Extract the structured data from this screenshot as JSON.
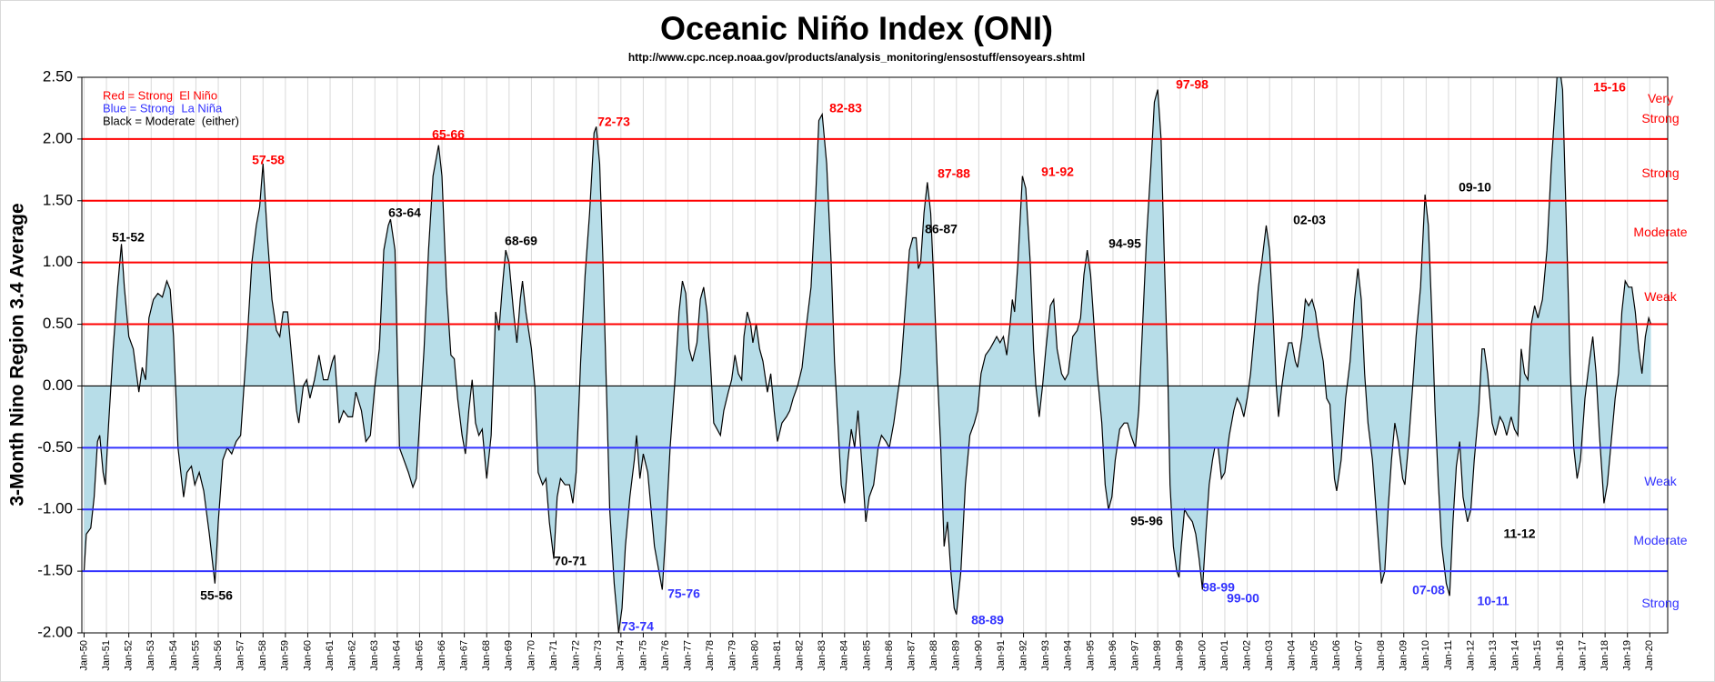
{
  "chart_data": {
    "type": "area",
    "title": "Oceanic Niño Index (ONI)",
    "subtitle": "http://www.cpc.ncep.noaa.gov/products/analysis_monitoring/ensostuff/ensoyears.shtml",
    "y_label": "3-Month Nino Region 3.4 Average",
    "legend_notes": [
      {
        "text": "Red = Strong  El Niño",
        "color": "#ff0000"
      },
      {
        "text": "Blue = Strong  La Niña",
        "color": "#3333ff"
      },
      {
        "text": "Black = Moderate  (either)",
        "color": "#000000"
      }
    ],
    "ylim": [
      -2,
      2.5
    ],
    "yticks": [
      {
        "value": -2,
        "label": "-2.00"
      },
      {
        "value": -1.5,
        "label": "-1.50"
      },
      {
        "value": -1,
        "label": "-1.00"
      },
      {
        "value": -0.5,
        "label": "-0.50"
      },
      {
        "value": 0,
        "label": "0.00"
      },
      {
        "value": 0.5,
        "label": "0.50"
      },
      {
        "value": 1,
        "label": "1.00"
      },
      {
        "value": 1.5,
        "label": "1.50"
      },
      {
        "value": 2,
        "label": "2.00"
      },
      {
        "value": 2.5,
        "label": "2.50"
      }
    ],
    "xlim": [
      1949.9,
      2020.8
    ],
    "xticks": [
      {
        "value": 1950,
        "label": "Jan-50"
      },
      {
        "value": 1951,
        "label": "Jan-51"
      },
      {
        "value": 1952,
        "label": "Jan-52"
      },
      {
        "value": 1953,
        "label": "Jan-53"
      },
      {
        "value": 1954,
        "label": "Jan-54"
      },
      {
        "value": 1955,
        "label": "Jan-55"
      },
      {
        "value": 1956,
        "label": "Jan-56"
      },
      {
        "value": 1957,
        "label": "Jan-57"
      },
      {
        "value": 1958,
        "label": "Jan-58"
      },
      {
        "value": 1959,
        "label": "Jan-59"
      },
      {
        "value": 1960,
        "label": "Jan-60"
      },
      {
        "value": 1961,
        "label": "Jan-61"
      },
      {
        "value": 1962,
        "label": "Jan-62"
      },
      {
        "value": 1963,
        "label": "Jan-63"
      },
      {
        "value": 1964,
        "label": "Jan-64"
      },
      {
        "value": 1965,
        "label": "Jan-65"
      },
      {
        "value": 1966,
        "label": "Jan-66"
      },
      {
        "value": 1967,
        "label": "Jan-67"
      },
      {
        "value": 1968,
        "label": "Jan-68"
      },
      {
        "value": 1969,
        "label": "Jan-69"
      },
      {
        "value": 1970,
        "label": "Jan-70"
      },
      {
        "value": 1971,
        "label": "Jan-71"
      },
      {
        "value": 1972,
        "label": "Jan-72"
      },
      {
        "value": 1973,
        "label": "Jan-73"
      },
      {
        "value": 1974,
        "label": "Jan-74"
      },
      {
        "value": 1975,
        "label": "Jan-75"
      },
      {
        "value": 1976,
        "label": "Jan-76"
      },
      {
        "value": 1977,
        "label": "Jan-77"
      },
      {
        "value": 1978,
        "label": "Jan-78"
      },
      {
        "value": 1979,
        "label": "Jan-79"
      },
      {
        "value": 1980,
        "label": "Jan-80"
      },
      {
        "value": 1981,
        "label": "Jan-81"
      },
      {
        "value": 1982,
        "label": "Jan-82"
      },
      {
        "value": 1983,
        "label": "Jan-83"
      },
      {
        "value": 1984,
        "label": "Jan-84"
      },
      {
        "value": 1985,
        "label": "Jan-85"
      },
      {
        "value": 1986,
        "label": "Jan-86"
      },
      {
        "value": 1987,
        "label": "Jan-87"
      },
      {
        "value": 1988,
        "label": "Jan-88"
      },
      {
        "value": 1989,
        "label": "Jan-89"
      },
      {
        "value": 1990,
        "label": "Jan-90"
      },
      {
        "value": 1991,
        "label": "Jan-91"
      },
      {
        "value": 1992,
        "label": "Jan-92"
      },
      {
        "value": 1993,
        "label": "Jan-93"
      },
      {
        "value": 1994,
        "label": "Jan-94"
      },
      {
        "value": 1995,
        "label": "Jan-95"
      },
      {
        "value": 1996,
        "label": "Jan-96"
      },
      {
        "value": 1997,
        "label": "Jan-97"
      },
      {
        "value": 1998,
        "label": "Jan-98"
      },
      {
        "value": 1999,
        "label": "Jan-99"
      },
      {
        "value": 2000,
        "label": "Jan-00"
      },
      {
        "value": 2001,
        "label": "Jan-01"
      },
      {
        "value": 2002,
        "label": "Jan-02"
      },
      {
        "value": 2003,
        "label": "Jan-03"
      },
      {
        "value": 2004,
        "label": "Jan-04"
      },
      {
        "value": 2005,
        "label": "Jan-05"
      },
      {
        "value": 2006,
        "label": "Jan-06"
      },
      {
        "value": 2007,
        "label": "Jan-07"
      },
      {
        "value": 2008,
        "label": "Jan-08"
      },
      {
        "value": 2009,
        "label": "Jan-09"
      },
      {
        "value": 2010,
        "label": "Jan-10"
      },
      {
        "value": 2011,
        "label": "Jan-11"
      },
      {
        "value": 2012,
        "label": "Jan-12"
      },
      {
        "value": 2013,
        "label": "Jan-13"
      },
      {
        "value": 2014,
        "label": "Jan-14"
      },
      {
        "value": 2015,
        "label": "Jan-15"
      },
      {
        "value": 2016,
        "label": "Jan-16"
      },
      {
        "value": 2017,
        "label": "Jan-17"
      },
      {
        "value": 2018,
        "label": "Jan-18"
      },
      {
        "value": 2019,
        "label": "Jan-19"
      },
      {
        "value": 2020,
        "label": "Jan-20"
      }
    ],
    "grid": true,
    "fill_color": "#b7dde8",
    "line_color": "#000000",
    "reference_lines": [
      {
        "value": 2,
        "color": "#ff0000"
      },
      {
        "value": 1.5,
        "color": "#ff0000"
      },
      {
        "value": 1,
        "color": "#ff0000"
      },
      {
        "value": 0.5,
        "color": "#ff0000"
      },
      {
        "value": -0.5,
        "color": "#3333ff"
      },
      {
        "value": -1,
        "color": "#3333ff"
      },
      {
        "value": -1.5,
        "color": "#3333ff"
      }
    ],
    "strength_labels": [
      {
        "text": "Very Strong",
        "color": "#ff0000"
      },
      {
        "text": "Strong",
        "color": "#ff0000"
      },
      {
        "text": "Moderate",
        "color": "#ff0000"
      },
      {
        "text": "Weak",
        "color": "#ff0000"
      },
      {
        "text": "Weak",
        "color": "#3333ff"
      },
      {
        "text": "Moderate",
        "color": "#3333ff"
      },
      {
        "text": "Strong",
        "color": "#3333ff"
      }
    ],
    "annotations": [
      {
        "text": "51-52",
        "color": "#000000"
      },
      {
        "text": "55-56",
        "color": "#000000"
      },
      {
        "text": "57-58",
        "color": "#ff0000"
      },
      {
        "text": "63-64",
        "color": "#000000"
      },
      {
        "text": "65-66",
        "color": "#ff0000"
      },
      {
        "text": "68-69",
        "color": "#000000"
      },
      {
        "text": "70-71",
        "color": "#000000"
      },
      {
        "text": "72-73",
        "color": "#ff0000"
      },
      {
        "text": "73-74",
        "color": "#3333ff"
      },
      {
        "text": "75-76",
        "color": "#3333ff"
      },
      {
        "text": "82-83",
        "color": "#ff0000"
      },
      {
        "text": "86-87",
        "color": "#000000"
      },
      {
        "text": "87-88",
        "color": "#ff0000"
      },
      {
        "text": "88-89",
        "color": "#3333ff"
      },
      {
        "text": "91-92",
        "color": "#ff0000"
      },
      {
        "text": "94-95",
        "color": "#000000"
      },
      {
        "text": "95-96",
        "color": "#000000"
      },
      {
        "text": "97-98",
        "color": "#ff0000"
      },
      {
        "text": "98-99",
        "color": "#3333ff"
      },
      {
        "text": "99-00",
        "color": "#3333ff"
      },
      {
        "text": "02-03",
        "color": "#000000"
      },
      {
        "text": "07-08",
        "color": "#3333ff"
      },
      {
        "text": "09-10",
        "color": "#000000"
      },
      {
        "text": "10-11",
        "color": "#3333ff"
      },
      {
        "text": "11-12",
        "color": "#000000"
      },
      {
        "text": "15-16",
        "color": "#ff0000"
      }
    ],
    "x": [
      1950.0,
      1950.1,
      1950.3,
      1950.45,
      1950.6,
      1950.7,
      1950.85,
      1950.95,
      1951.1,
      1951.3,
      1951.5,
      1951.67,
      1951.8,
      1952.0,
      1952.2,
      1952.45,
      1952.6,
      1952.75,
      1952.9,
      1953.1,
      1953.3,
      1953.5,
      1953.7,
      1953.85,
      1954.0,
      1954.2,
      1954.45,
      1954.6,
      1954.8,
      1954.95,
      1955.15,
      1955.35,
      1955.6,
      1955.85,
      1956.0,
      1956.2,
      1956.4,
      1956.6,
      1956.8,
      1957.0,
      1957.3,
      1957.5,
      1957.7,
      1957.85,
      1958.0,
      1958.2,
      1958.4,
      1958.6,
      1958.75,
      1958.9,
      1959.1,
      1959.3,
      1959.5,
      1959.6,
      1959.8,
      1959.95,
      1960.1,
      1960.3,
      1960.5,
      1960.7,
      1960.9,
      1961.1,
      1961.2,
      1961.4,
      1961.6,
      1961.8,
      1962.0,
      1962.15,
      1962.4,
      1962.6,
      1962.8,
      1963.0,
      1963.2,
      1963.4,
      1963.6,
      1963.7,
      1963.9,
      1964.1,
      1964.3,
      1964.5,
      1964.7,
      1964.85,
      1965.0,
      1965.2,
      1965.4,
      1965.6,
      1965.85,
      1966.0,
      1966.2,
      1966.4,
      1966.55,
      1966.7,
      1966.9,
      1967.05,
      1967.2,
      1967.35,
      1967.5,
      1967.65,
      1967.8,
      1968.0,
      1968.2,
      1968.4,
      1968.55,
      1968.7,
      1968.85,
      1969.0,
      1969.2,
      1969.35,
      1969.5,
      1969.6,
      1969.75,
      1970.0,
      1970.15,
      1970.3,
      1970.5,
      1970.65,
      1970.8,
      1971.0,
      1971.15,
      1971.3,
      1971.5,
      1971.7,
      1971.85,
      1972.0,
      1972.2,
      1972.4,
      1972.6,
      1972.8,
      1972.9,
      1973.05,
      1973.2,
      1973.35,
      1973.5,
      1973.7,
      1973.9,
      1974.05,
      1974.2,
      1974.4,
      1974.6,
      1974.7,
      1974.85,
      1975.0,
      1975.2,
      1975.35,
      1975.5,
      1975.7,
      1975.85,
      1976.0,
      1976.2,
      1976.4,
      1976.6,
      1976.75,
      1976.9,
      1977.05,
      1977.2,
      1977.4,
      1977.55,
      1977.7,
      1977.85,
      1978.0,
      1978.15,
      1978.3,
      1978.45,
      1978.6,
      1978.8,
      1978.95,
      1979.1,
      1979.25,
      1979.4,
      1979.5,
      1979.65,
      1979.8,
      1979.9,
      1980.05,
      1980.2,
      1980.35,
      1980.55,
      1980.7,
      1980.85,
      1981.0,
      1981.2,
      1981.4,
      1981.55,
      1981.7,
      1981.9,
      1982.1,
      1982.3,
      1982.5,
      1982.7,
      1982.85,
      1983.0,
      1983.2,
      1983.4,
      1983.55,
      1983.7,
      1983.85,
      1984.0,
      1984.15,
      1984.3,
      1984.45,
      1984.6,
      1984.8,
      1984.95,
      1985.1,
      1985.3,
      1985.5,
      1985.65,
      1985.85,
      1986.0,
      1986.2,
      1986.5,
      1986.7,
      1986.9,
      1987.05,
      1987.2,
      1987.3,
      1987.4,
      1987.55,
      1987.7,
      1987.85,
      1988.0,
      1988.15,
      1988.3,
      1988.45,
      1988.6,
      1988.75,
      1988.9,
      1989.0,
      1989.2,
      1989.4,
      1989.6,
      1989.8,
      1989.95,
      1990.1,
      1990.3,
      1990.5,
      1990.65,
      1990.8,
      1990.95,
      1991.1,
      1991.25,
      1991.4,
      1991.5,
      1991.6,
      1991.75,
      1991.95,
      1992.1,
      1992.3,
      1992.45,
      1992.55,
      1992.7,
      1992.85,
      1993.0,
      1993.2,
      1993.35,
      1993.5,
      1993.7,
      1993.85,
      1994.0,
      1994.2,
      1994.4,
      1994.55,
      1994.7,
      1994.85,
      1995.0,
      1995.15,
      1995.3,
      1995.5,
      1995.65,
      1995.8,
      1995.95,
      1996.1,
      1996.3,
      1996.5,
      1996.65,
      1996.8,
      1997.0,
      1997.15,
      1997.3,
      1997.5,
      1997.7,
      1997.85,
      1998.0,
      1998.15,
      1998.3,
      1998.45,
      1998.55,
      1998.7,
      1998.85,
      1998.95,
      1999.05,
      1999.2,
      1999.35,
      1999.55,
      1999.7,
      1999.85,
      2000.0,
      2000.15,
      2000.3,
      2000.45,
      2000.55,
      2000.7,
      2000.85,
      2001.0,
      2001.2,
      2001.4,
      2001.55,
      2001.7,
      2001.85,
      2002.0,
      2002.15,
      2002.3,
      2002.5,
      2002.65,
      2002.85,
      2003.0,
      2003.15,
      2003.3,
      2003.4,
      2003.55,
      2003.7,
      2003.85,
      2004.0,
      2004.15,
      2004.25,
      2004.45,
      2004.6,
      2004.75,
      2004.9,
      2005.05,
      2005.2,
      2005.4,
      2005.55,
      2005.7,
      2005.9,
      2006.0,
      2006.2,
      2006.4,
      2006.6,
      2006.8,
      2006.95,
      2007.1,
      2007.25,
      2007.4,
      2007.6,
      2007.8,
      2008.0,
      2008.15,
      2008.3,
      2008.45,
      2008.6,
      2008.75,
      2008.95,
      2009.05,
      2009.2,
      2009.4,
      2009.55,
      2009.75,
      2009.95,
      2010.1,
      2010.25,
      2010.4,
      2010.55,
      2010.7,
      2010.9,
      2011.05,
      2011.2,
      2011.35,
      2011.5,
      2011.65,
      2011.85,
      2012.0,
      2012.15,
      2012.35,
      2012.5,
      2012.6,
      2012.75,
      2012.95,
      2013.1,
      2013.3,
      2013.45,
      2013.6,
      2013.8,
      2013.95,
      2014.1,
      2014.25,
      2014.4,
      2014.55,
      2014.7,
      2014.85,
      2015.0,
      2015.2,
      2015.4,
      2015.6,
      2015.85,
      2015.95,
      2016.1,
      2016.3,
      2016.45,
      2016.6,
      2016.75,
      2016.9,
      2017.1,
      2017.3,
      2017.45,
      2017.6,
      2017.75,
      2017.95,
      2018.1,
      2018.25,
      2018.45,
      2018.6,
      2018.75,
      2018.9,
      2019.05,
      2019.2,
      2019.35,
      2019.5,
      2019.65,
      2019.8,
      2019.95,
      2020.05
    ],
    "values": [
      -1.5,
      -1.2,
      -1.15,
      -0.9,
      -0.45,
      -0.4,
      -0.7,
      -0.8,
      -0.3,
      0.3,
      0.8,
      1.15,
      0.8,
      0.4,
      0.3,
      -0.05,
      0.15,
      0.05,
      0.55,
      0.7,
      0.75,
      0.72,
      0.85,
      0.78,
      0.4,
      -0.5,
      -0.9,
      -0.7,
      -0.65,
      -0.8,
      -0.7,
      -0.85,
      -1.2,
      -1.6,
      -1.1,
      -0.6,
      -0.5,
      -0.55,
      -0.45,
      -0.4,
      0.4,
      1.0,
      1.3,
      1.45,
      1.8,
      1.2,
      0.7,
      0.45,
      0.4,
      0.6,
      0.6,
      0.2,
      -0.2,
      -0.3,
      0.0,
      0.05,
      -0.1,
      0.05,
      0.25,
      0.05,
      0.05,
      0.2,
      0.25,
      -0.3,
      -0.2,
      -0.25,
      -0.25,
      -0.05,
      -0.2,
      -0.45,
      -0.4,
      0.0,
      0.3,
      1.1,
      1.3,
      1.35,
      1.1,
      -0.5,
      -0.6,
      -0.7,
      -0.82,
      -0.75,
      -0.3,
      0.3,
      1.1,
      1.7,
      1.95,
      1.7,
      0.8,
      0.25,
      0.22,
      -0.1,
      -0.4,
      -0.55,
      -0.2,
      0.05,
      -0.3,
      -0.4,
      -0.35,
      -0.75,
      -0.4,
      0.6,
      0.45,
      0.8,
      1.1,
      1.0,
      0.6,
      0.35,
      0.7,
      0.85,
      0.6,
      0.3,
      0.0,
      -0.7,
      -0.8,
      -0.75,
      -1.1,
      -1.4,
      -0.9,
      -0.75,
      -0.8,
      -0.8,
      -0.95,
      -0.7,
      0.2,
      0.9,
      1.4,
      2.05,
      2.1,
      1.8,
      1.0,
      0.0,
      -1.0,
      -1.6,
      -2.0,
      -1.8,
      -1.3,
      -0.9,
      -0.6,
      -0.4,
      -0.75,
      -0.55,
      -0.7,
      -1.0,
      -1.3,
      -1.5,
      -1.65,
      -1.2,
      -0.5,
      0.0,
      0.6,
      0.85,
      0.75,
      0.3,
      0.2,
      0.35,
      0.7,
      0.8,
      0.6,
      0.2,
      -0.3,
      -0.35,
      -0.4,
      -0.2,
      -0.05,
      0.05,
      0.25,
      0.1,
      0.05,
      0.4,
      0.6,
      0.5,
      0.35,
      0.5,
      0.3,
      0.2,
      -0.05,
      0.1,
      -0.2,
      -0.45,
      -0.3,
      -0.25,
      -0.2,
      -0.1,
      0.0,
      0.15,
      0.5,
      0.8,
      1.5,
      2.15,
      2.2,
      1.8,
      1.0,
      0.2,
      -0.3,
      -0.8,
      -0.95,
      -0.6,
      -0.35,
      -0.5,
      -0.2,
      -0.7,
      -1.1,
      -0.9,
      -0.8,
      -0.5,
      -0.4,
      -0.45,
      -0.5,
      -0.3,
      0.1,
      0.6,
      1.1,
      1.2,
      1.2,
      0.95,
      1.0,
      1.4,
      1.65,
      1.4,
      0.8,
      0.1,
      -0.5,
      -1.3,
      -1.1,
      -1.5,
      -1.8,
      -1.85,
      -1.5,
      -0.8,
      -0.4,
      -0.3,
      -0.2,
      0.1,
      0.25,
      0.3,
      0.35,
      0.4,
      0.35,
      0.4,
      0.25,
      0.5,
      0.7,
      0.6,
      1.0,
      1.7,
      1.6,
      1.0,
      0.3,
      0.0,
      -0.25,
      0.0,
      0.3,
      0.65,
      0.7,
      0.3,
      0.1,
      0.05,
      0.1,
      0.4,
      0.45,
      0.55,
      0.9,
      1.1,
      0.9,
      0.5,
      0.1,
      -0.3,
      -0.8,
      -1.0,
      -0.9,
      -0.6,
      -0.35,
      -0.3,
      -0.3,
      -0.4,
      -0.5,
      -0.2,
      0.4,
      1.2,
      1.8,
      2.3,
      2.4,
      2.0,
      1.0,
      0.1,
      -0.8,
      -1.3,
      -1.5,
      -1.55,
      -1.3,
      -1.0,
      -1.05,
      -1.1,
      -1.2,
      -1.4,
      -1.65,
      -1.2,
      -0.8,
      -0.6,
      -0.5,
      -0.5,
      -0.75,
      -0.7,
      -0.4,
      -0.2,
      -0.1,
      -0.15,
      -0.25,
      -0.1,
      0.1,
      0.4,
      0.8,
      1.0,
      1.3,
      1.1,
      0.6,
      0.0,
      -0.25,
      0.0,
      0.2,
      0.35,
      0.35,
      0.2,
      0.15,
      0.4,
      0.7,
      0.65,
      0.7,
      0.6,
      0.4,
      0.2,
      -0.1,
      -0.15,
      -0.75,
      -0.85,
      -0.6,
      -0.1,
      0.2,
      0.7,
      0.95,
      0.7,
      0.1,
      -0.3,
      -0.6,
      -1.1,
      -1.6,
      -1.5,
      -1.0,
      -0.6,
      -0.3,
      -0.45,
      -0.75,
      -0.8,
      -0.5,
      0.0,
      0.4,
      0.8,
      1.55,
      1.3,
      0.6,
      -0.2,
      -0.8,
      -1.3,
      -1.6,
      -1.7,
      -1.1,
      -0.65,
      -0.45,
      -0.9,
      -1.1,
      -1.0,
      -0.6,
      -0.2,
      0.3,
      0.3,
      0.1,
      -0.3,
      -0.4,
      -0.25,
      -0.3,
      -0.4,
      -0.25,
      -0.35,
      -0.4,
      0.3,
      0.1,
      0.05,
      0.5,
      0.65,
      0.55,
      0.7,
      1.1,
      1.8,
      2.5,
      2.6,
      2.4,
      1.1,
      0.1,
      -0.5,
      -0.75,
      -0.6,
      -0.1,
      0.2,
      0.4,
      0.1,
      -0.4,
      -0.95,
      -0.8,
      -0.5,
      -0.1,
      0.1,
      0.6,
      0.85,
      0.8,
      0.8,
      0.6,
      0.3,
      0.1,
      0.4,
      0.55,
      0.5
    ]
  }
}
